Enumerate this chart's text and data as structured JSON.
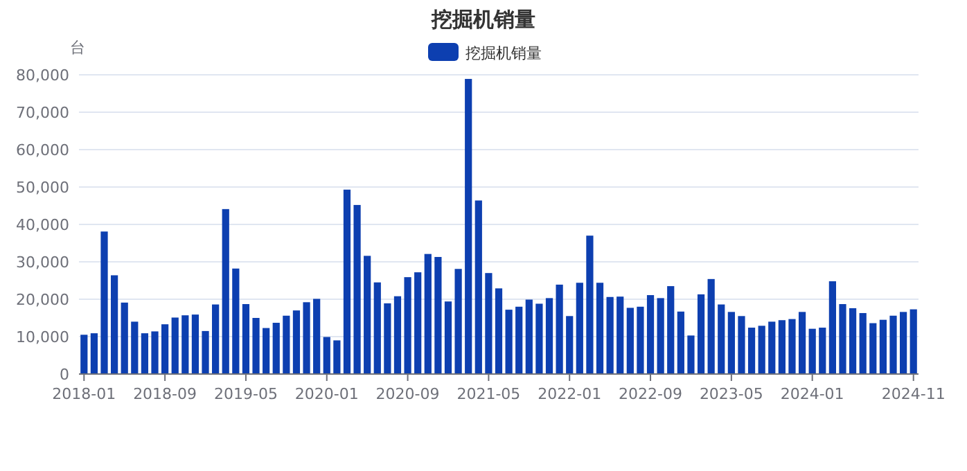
{
  "chart_data": {
    "type": "bar",
    "title": "挖掘机销量",
    "ylabel": "台",
    "legend": "top",
    "grid": "y",
    "categories": [
      "2018-01",
      null,
      null,
      null,
      null,
      null,
      null,
      null,
      "2018-09",
      null,
      null,
      null,
      null,
      null,
      null,
      null,
      "2019-05",
      null,
      null,
      null,
      null,
      null,
      null,
      null,
      "2020-01",
      null,
      null,
      null,
      null,
      null,
      null,
      null,
      "2020-09",
      null,
      null,
      null,
      null,
      null,
      null,
      null,
      "2021-05",
      null,
      null,
      null,
      null,
      null,
      null,
      null,
      "2022-01",
      null,
      null,
      null,
      null,
      null,
      null,
      null,
      "2022-09",
      null,
      null,
      null,
      null,
      null,
      null,
      null,
      "2023-05",
      null,
      null,
      null,
      null,
      null,
      null,
      null,
      "2024-01",
      null,
      null,
      null,
      null,
      null,
      null,
      null,
      null,
      null,
      "2024-11"
    ],
    "ylim": [
      0,
      80000
    ],
    "yticks": [
      0,
      {
        "value": 10000,
        "label": "10,000"
      },
      {
        "value": 20000,
        "label": "20,000"
      },
      {
        "value": 30000,
        "label": "30,000"
      },
      {
        "value": 40000,
        "label": "40,000"
      },
      {
        "value": 50000,
        "label": "50,000"
      },
      {
        "value": 60000,
        "label": "60,000"
      },
      {
        "value": 70000,
        "label": "70,000"
      },
      {
        "value": 80000,
        "label": "80,000"
      }
    ],
    "series": [
      {
        "name": "挖掘机销量",
        "color": "#0d3fb0",
        "values": [
          10500,
          10900,
          38100,
          26400,
          19100,
          14000,
          10900,
          11400,
          13300,
          15100,
          15700,
          15900,
          11500,
          18600,
          44100,
          28200,
          18700,
          15000,
          12300,
          13700,
          15600,
          17000,
          19200,
          20100,
          9900,
          9000,
          49300,
          45200,
          31600,
          24500,
          18900,
          20800,
          25900,
          27200,
          32100,
          31300,
          19400,
          28100,
          78900,
          46400,
          27000,
          22900,
          17200,
          18000,
          19900,
          18800,
          20300,
          23900,
          15500,
          24400,
          37000,
          24400,
          20600,
          20700,
          17700,
          18000,
          21100,
          20300,
          23500,
          16700,
          10300,
          21300,
          25400,
          18600,
          16600,
          15500,
          12400,
          12900,
          14000,
          14400,
          14700,
          16600,
          12100,
          12400,
          24800,
          18700,
          17600,
          16300,
          13600,
          14500,
          15600,
          16600,
          17300
        ]
      }
    ]
  }
}
